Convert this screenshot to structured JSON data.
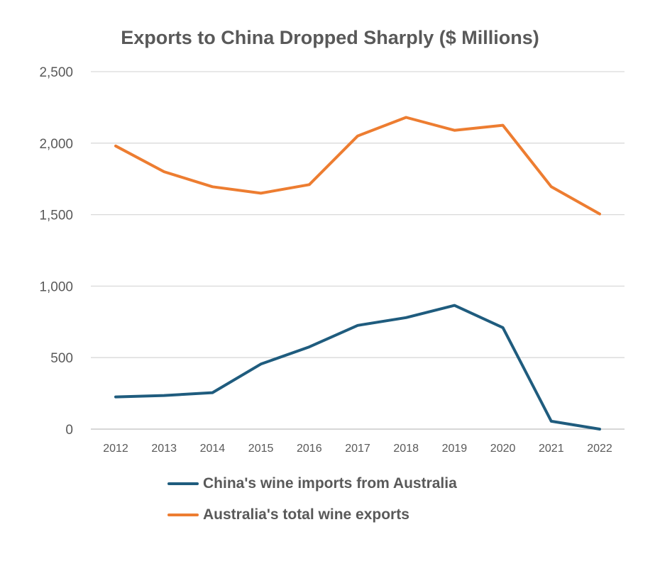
{
  "chart_data": {
    "type": "line",
    "title": "Exports to China Dropped Sharply ($ Millions)",
    "x": [
      "2012",
      "2013",
      "2014",
      "2015",
      "2016",
      "2017",
      "2018",
      "2019",
      "2020",
      "2021",
      "2022"
    ],
    "ylim": [
      0,
      2500
    ],
    "yticks": [
      0,
      500,
      1000,
      1500,
      2000,
      2500
    ],
    "ytick_labels": [
      "0",
      "500",
      "1,000",
      "1,500",
      "2,000",
      "2,500"
    ],
    "grid": true,
    "legend_position": "bottom",
    "series": [
      {
        "name": "China's wine imports from Australia",
        "color": "#1F5C7E",
        "values": [
          225,
          235,
          255,
          455,
          575,
          725,
          780,
          865,
          710,
          55,
          0
        ]
      },
      {
        "name": "Australia's total wine exports",
        "color": "#ED7D31",
        "values": [
          1980,
          1800,
          1695,
          1650,
          1710,
          2050,
          2180,
          2090,
          2125,
          1695,
          1505
        ]
      }
    ]
  }
}
